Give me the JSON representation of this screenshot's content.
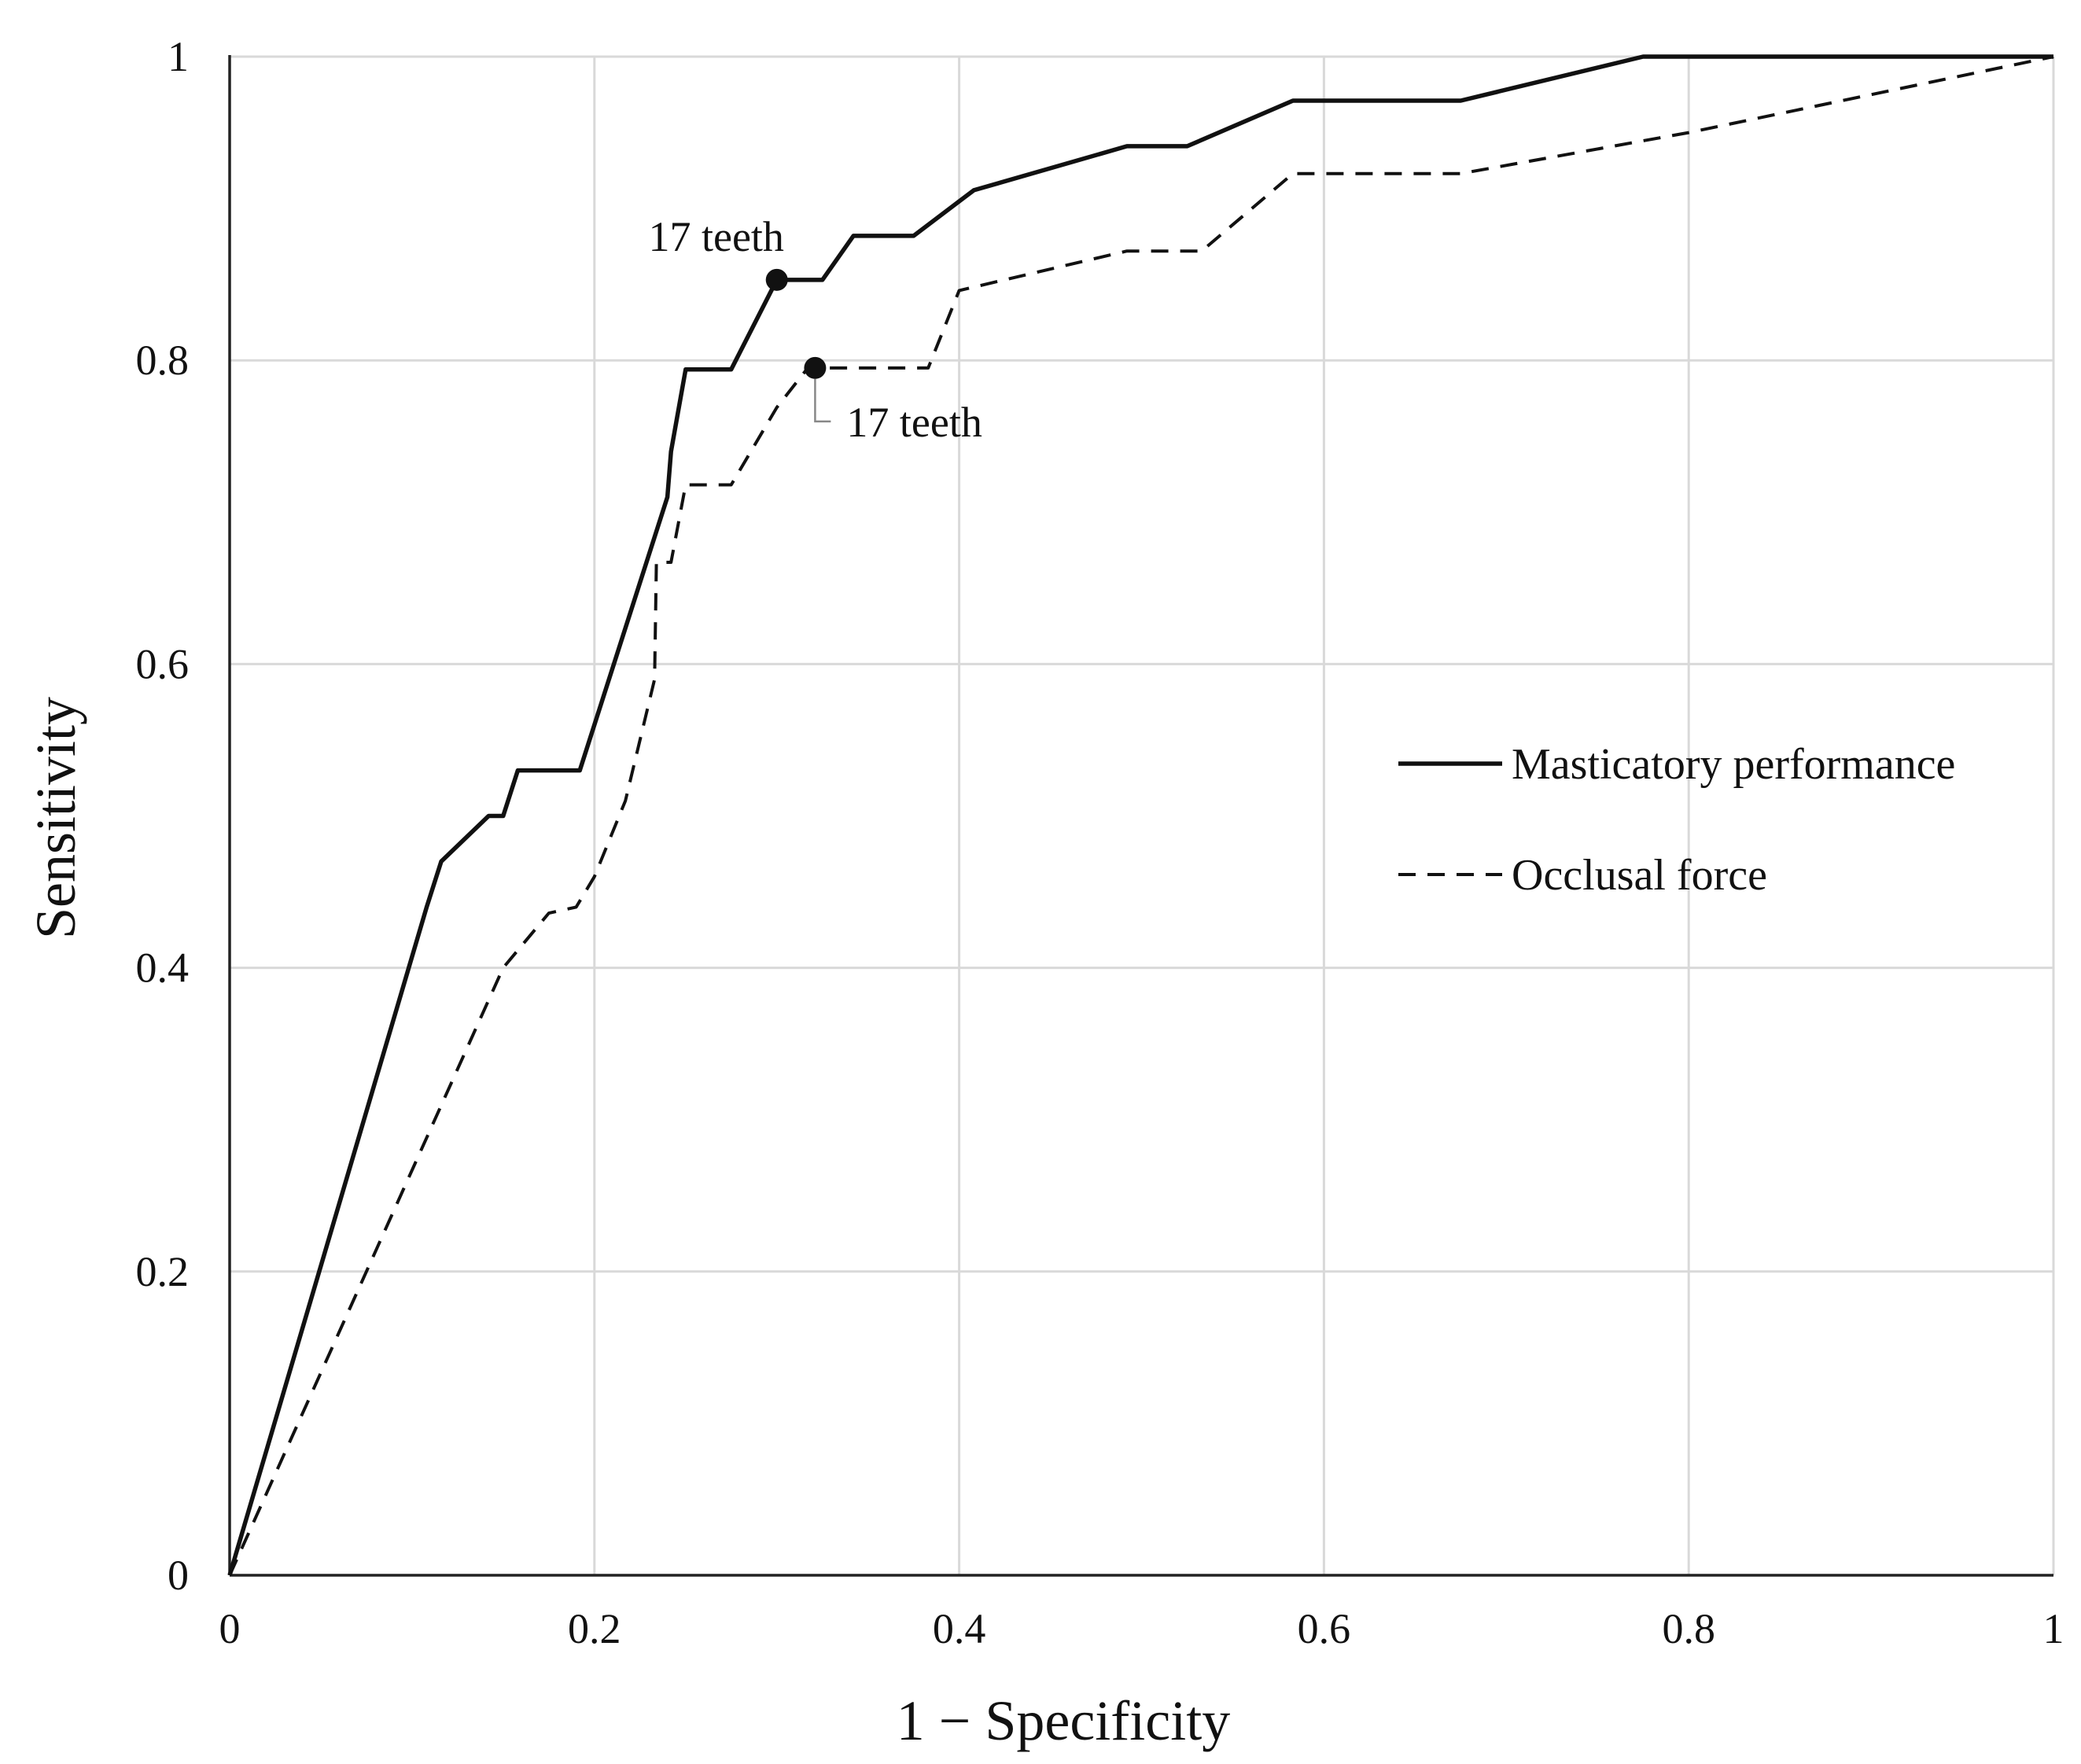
{
  "chart_data": {
    "type": "line",
    "title": "",
    "xlabel": "1 − Specificity",
    "ylabel": "Sensitivity",
    "xlim": [
      0,
      1
    ],
    "ylim": [
      0,
      1
    ],
    "x_ticks": [
      0,
      0.2,
      0.4,
      0.6,
      0.8,
      1
    ],
    "x_tick_labels": [
      "0",
      "0.2",
      "0.4",
      "0.6",
      "0.8",
      "1"
    ],
    "y_ticks": [
      0,
      0.2,
      0.4,
      0.6,
      0.8,
      1
    ],
    "y_tick_labels": [
      "0",
      "0.2",
      "0.4",
      "0.6",
      "0.8",
      "1"
    ],
    "grid": true,
    "legend_position": "center-right",
    "series": [
      {
        "name": "Masticatory performance",
        "style": "solid",
        "color": "#111111",
        "points": [
          [
            0,
            0
          ],
          [
            0.108,
            0.44
          ],
          [
            0.116,
            0.47
          ],
          [
            0.142,
            0.5
          ],
          [
            0.15,
            0.5
          ],
          [
            0.158,
            0.53
          ],
          [
            0.192,
            0.53
          ],
          [
            0.24,
            0.71
          ],
          [
            0.242,
            0.74
          ],
          [
            0.25,
            0.794
          ],
          [
            0.275,
            0.794
          ],
          [
            0.3,
            0.853
          ],
          [
            0.325,
            0.853
          ],
          [
            0.342,
            0.882
          ],
          [
            0.375,
            0.882
          ],
          [
            0.408,
            0.912
          ],
          [
            0.492,
            0.941
          ],
          [
            0.525,
            0.941
          ],
          [
            0.583,
            0.971
          ],
          [
            0.675,
            0.971
          ],
          [
            0.775,
            1.0
          ],
          [
            1.0,
            1.0
          ]
        ]
      },
      {
        "name": "Occlusal force",
        "style": "dashed",
        "color": "#111111",
        "points": [
          [
            0,
            0
          ],
          [
            0.15,
            0.4
          ],
          [
            0.175,
            0.436
          ],
          [
            0.19,
            0.44
          ],
          [
            0.2,
            0.46
          ],
          [
            0.217,
            0.51
          ],
          [
            0.233,
            0.59
          ],
          [
            0.234,
            0.667
          ],
          [
            0.242,
            0.667
          ],
          [
            0.25,
            0.718
          ],
          [
            0.275,
            0.718
          ],
          [
            0.3,
            0.769
          ],
          [
            0.317,
            0.795
          ],
          [
            0.383,
            0.795
          ],
          [
            0.4,
            0.846
          ],
          [
            0.492,
            0.872
          ],
          [
            0.533,
            0.872
          ],
          [
            0.583,
            0.923
          ],
          [
            0.675,
            0.923
          ],
          [
            0.8,
            0.95
          ],
          [
            1.0,
            1.0
          ]
        ]
      }
    ],
    "annotations": [
      {
        "label": "17 teeth",
        "series": "Masticatory performance",
        "x": 0.3,
        "y": 0.853
      },
      {
        "label": "17 teeth",
        "series": "Occlusal force",
        "x": 0.321,
        "y": 0.795
      }
    ]
  }
}
